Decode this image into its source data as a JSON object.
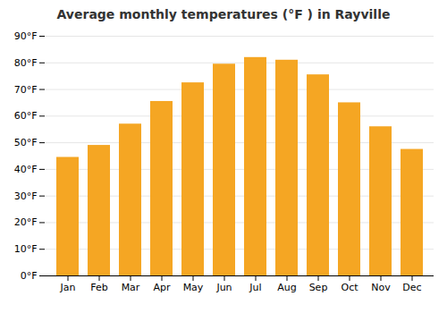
{
  "chart_data": {
    "type": "bar",
    "title": "Average monthly temperatures (°F ) in Rayville",
    "categories": [
      "Jan",
      "Feb",
      "Mar",
      "Apr",
      "May",
      "Jun",
      "Jul",
      "Aug",
      "Sep",
      "Oct",
      "Nov",
      "Dec"
    ],
    "values": [
      44.5,
      49,
      57,
      65.5,
      72.5,
      79.5,
      82,
      81,
      75.5,
      65,
      56,
      47.5
    ],
    "color": "#F5A623",
    "ylim": [
      0,
      90
    ],
    "yticks": [
      {
        "value": 0,
        "label": "0°F"
      },
      {
        "value": 10,
        "label": "10°F"
      },
      {
        "value": 20,
        "label": "20°F"
      },
      {
        "value": 30,
        "label": "30°F"
      },
      {
        "value": 40,
        "label": "40°F"
      },
      {
        "value": 50,
        "label": "50°F"
      },
      {
        "value": 60,
        "label": "60°F"
      },
      {
        "value": 70,
        "label": "70°F"
      },
      {
        "value": 80,
        "label": "80°F"
      },
      {
        "value": 90,
        "label": "90°F"
      }
    ],
    "grid": true
  }
}
